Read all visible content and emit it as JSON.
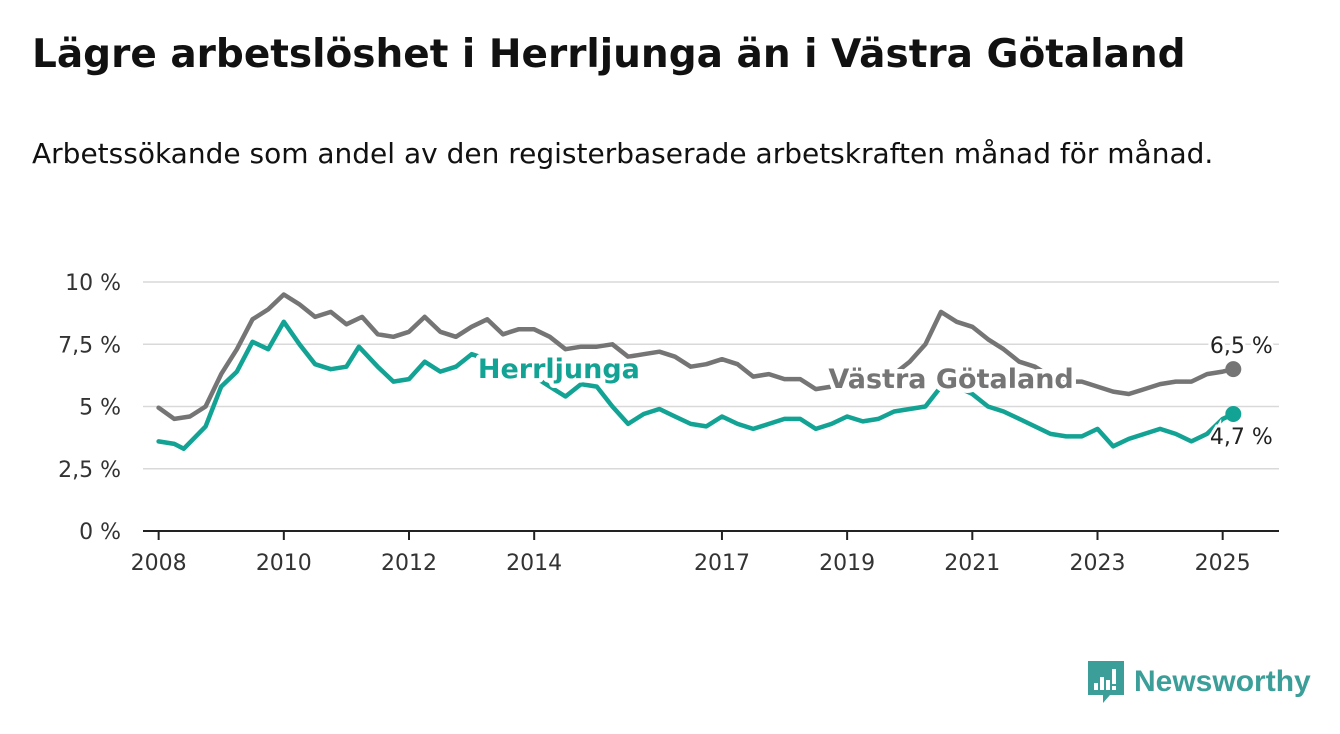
{
  "title": "Lägre arbetslöshet i Herrljunga än i Västra Götaland",
  "subtitle": "Arbetssökande som andel av den registerbaserade arbetskraften månad för månad.",
  "brand": {
    "name": "Newsworthy",
    "color": "#3b9e98"
  },
  "chart_data": {
    "type": "line",
    "x_unit": "year",
    "ylim": [
      0,
      10
    ],
    "xlim": [
      2007.75,
      2025.9
    ],
    "y_ticks": [
      {
        "value": 0,
        "label": "0 %"
      },
      {
        "value": 2.5,
        "label": "2,5 %"
      },
      {
        "value": 5,
        "label": "5 %"
      },
      {
        "value": 7.5,
        "label": "7,5 %"
      },
      {
        "value": 10,
        "label": "10 %"
      }
    ],
    "x_ticks": [
      {
        "value": 2008,
        "label": "2008"
      },
      {
        "value": 2010,
        "label": "2010"
      },
      {
        "value": 2012,
        "label": "2012"
      },
      {
        "value": 2014,
        "label": "2014"
      },
      {
        "value": 2017,
        "label": "2017"
      },
      {
        "value": 2019,
        "label": "2019"
      },
      {
        "value": 2021,
        "label": "2021"
      },
      {
        "value": 2023,
        "label": "2023"
      },
      {
        "value": 2025,
        "label": "2025"
      }
    ],
    "grid": "horizontal",
    "series": [
      {
        "name": "Västra Götaland",
        "color": "#757575",
        "end_label": "6,5 %",
        "points": [
          [
            2008.0,
            4.95
          ],
          [
            2008.25,
            4.5
          ],
          [
            2008.5,
            4.6
          ],
          [
            2008.75,
            5.0
          ],
          [
            2009.0,
            6.3
          ],
          [
            2009.25,
            7.3
          ],
          [
            2009.5,
            8.5
          ],
          [
            2009.75,
            8.9
          ],
          [
            2010.0,
            9.5
          ],
          [
            2010.25,
            9.1
          ],
          [
            2010.5,
            8.6
          ],
          [
            2010.75,
            8.8
          ],
          [
            2011.0,
            8.3
          ],
          [
            2011.25,
            8.6
          ],
          [
            2011.5,
            7.9
          ],
          [
            2011.75,
            7.8
          ],
          [
            2012.0,
            8.0
          ],
          [
            2012.25,
            8.6
          ],
          [
            2012.5,
            8.0
          ],
          [
            2012.75,
            7.8
          ],
          [
            2013.0,
            8.2
          ],
          [
            2013.25,
            8.5
          ],
          [
            2013.5,
            7.9
          ],
          [
            2013.75,
            8.1
          ],
          [
            2014.0,
            8.1
          ],
          [
            2014.25,
            7.8
          ],
          [
            2014.5,
            7.3
          ],
          [
            2014.75,
            7.4
          ],
          [
            2015.0,
            7.4
          ],
          [
            2015.25,
            7.5
          ],
          [
            2015.5,
            7.0
          ],
          [
            2015.75,
            7.1
          ],
          [
            2016.0,
            7.2
          ],
          [
            2016.25,
            7.0
          ],
          [
            2016.5,
            6.6
          ],
          [
            2016.75,
            6.7
          ],
          [
            2017.0,
            6.9
          ],
          [
            2017.25,
            6.7
          ],
          [
            2017.5,
            6.2
          ],
          [
            2017.75,
            6.3
          ],
          [
            2018.0,
            6.1
          ],
          [
            2018.25,
            6.1
          ],
          [
            2018.5,
            5.7
          ],
          [
            2018.75,
            5.8
          ],
          [
            2019.0,
            5.9
          ],
          [
            2019.25,
            5.9
          ],
          [
            2019.5,
            5.8
          ],
          [
            2019.75,
            6.3
          ],
          [
            2020.0,
            6.8
          ],
          [
            2020.25,
            7.5
          ],
          [
            2020.5,
            8.8
          ],
          [
            2020.75,
            8.4
          ],
          [
            2021.0,
            8.2
          ],
          [
            2021.25,
            7.7
          ],
          [
            2021.5,
            7.3
          ],
          [
            2021.75,
            6.8
          ],
          [
            2022.0,
            6.6
          ],
          [
            2022.25,
            6.2
          ],
          [
            2022.5,
            6.0
          ],
          [
            2022.75,
            6.0
          ],
          [
            2023.0,
            5.8
          ],
          [
            2023.25,
            5.6
          ],
          [
            2023.5,
            5.5
          ],
          [
            2023.75,
            5.7
          ],
          [
            2024.0,
            5.9
          ],
          [
            2024.25,
            6.0
          ],
          [
            2024.5,
            6.0
          ],
          [
            2024.75,
            6.3
          ],
          [
            2025.0,
            6.4
          ],
          [
            2025.17,
            6.5
          ]
        ]
      },
      {
        "name": "Herrljunga",
        "color": "#13a394",
        "end_label": "4,7 %",
        "points": [
          [
            2008.0,
            3.6
          ],
          [
            2008.25,
            3.5
          ],
          [
            2008.4,
            3.3
          ],
          [
            2008.75,
            4.2
          ],
          [
            2009.0,
            5.8
          ],
          [
            2009.25,
            6.4
          ],
          [
            2009.5,
            7.6
          ],
          [
            2009.75,
            7.3
          ],
          [
            2010.0,
            8.4
          ],
          [
            2010.25,
            7.5
          ],
          [
            2010.5,
            6.7
          ],
          [
            2010.75,
            6.5
          ],
          [
            2011.0,
            6.6
          ],
          [
            2011.2,
            7.4
          ],
          [
            2011.5,
            6.6
          ],
          [
            2011.75,
            6.0
          ],
          [
            2012.0,
            6.1
          ],
          [
            2012.25,
            6.8
          ],
          [
            2012.5,
            6.4
          ],
          [
            2012.75,
            6.6
          ],
          [
            2013.0,
            7.1
          ],
          [
            2013.25,
            6.9
          ],
          [
            2013.5,
            6.5
          ],
          [
            2013.75,
            6.4
          ],
          [
            2014.0,
            6.2
          ],
          [
            2014.25,
            5.8
          ],
          [
            2014.5,
            5.4
          ],
          [
            2014.75,
            5.9
          ],
          [
            2015.0,
            5.8
          ],
          [
            2015.25,
            5.0
          ],
          [
            2015.5,
            4.3
          ],
          [
            2015.75,
            4.7
          ],
          [
            2016.0,
            4.9
          ],
          [
            2016.25,
            4.6
          ],
          [
            2016.5,
            4.3
          ],
          [
            2016.75,
            4.2
          ],
          [
            2017.0,
            4.6
          ],
          [
            2017.25,
            4.3
          ],
          [
            2017.5,
            4.1
          ],
          [
            2017.75,
            4.3
          ],
          [
            2018.0,
            4.5
          ],
          [
            2018.25,
            4.5
          ],
          [
            2018.5,
            4.1
          ],
          [
            2018.75,
            4.3
          ],
          [
            2019.0,
            4.6
          ],
          [
            2019.25,
            4.4
          ],
          [
            2019.5,
            4.5
          ],
          [
            2019.75,
            4.8
          ],
          [
            2020.0,
            4.9
          ],
          [
            2020.25,
            5.0
          ],
          [
            2020.5,
            5.8
          ],
          [
            2020.75,
            5.8
          ],
          [
            2021.0,
            5.5
          ],
          [
            2021.25,
            5.0
          ],
          [
            2021.5,
            4.8
          ],
          [
            2021.75,
            4.5
          ],
          [
            2022.0,
            4.2
          ],
          [
            2022.25,
            3.9
          ],
          [
            2022.5,
            3.8
          ],
          [
            2022.75,
            3.8
          ],
          [
            2023.0,
            4.1
          ],
          [
            2023.25,
            3.4
          ],
          [
            2023.5,
            3.7
          ],
          [
            2023.75,
            3.9
          ],
          [
            2024.0,
            4.1
          ],
          [
            2024.25,
            3.9
          ],
          [
            2024.5,
            3.6
          ],
          [
            2024.75,
            3.9
          ],
          [
            2025.0,
            4.5
          ],
          [
            2025.17,
            4.7
          ]
        ]
      }
    ],
    "annotations": [
      {
        "series": "Herrljunga",
        "text": "Herrljunga",
        "x": 2013.1,
        "y": 6.5
      },
      {
        "series": "Västra Götaland",
        "text": "Västra Götaland",
        "x": 2018.7,
        "y": 6.1
      }
    ]
  }
}
